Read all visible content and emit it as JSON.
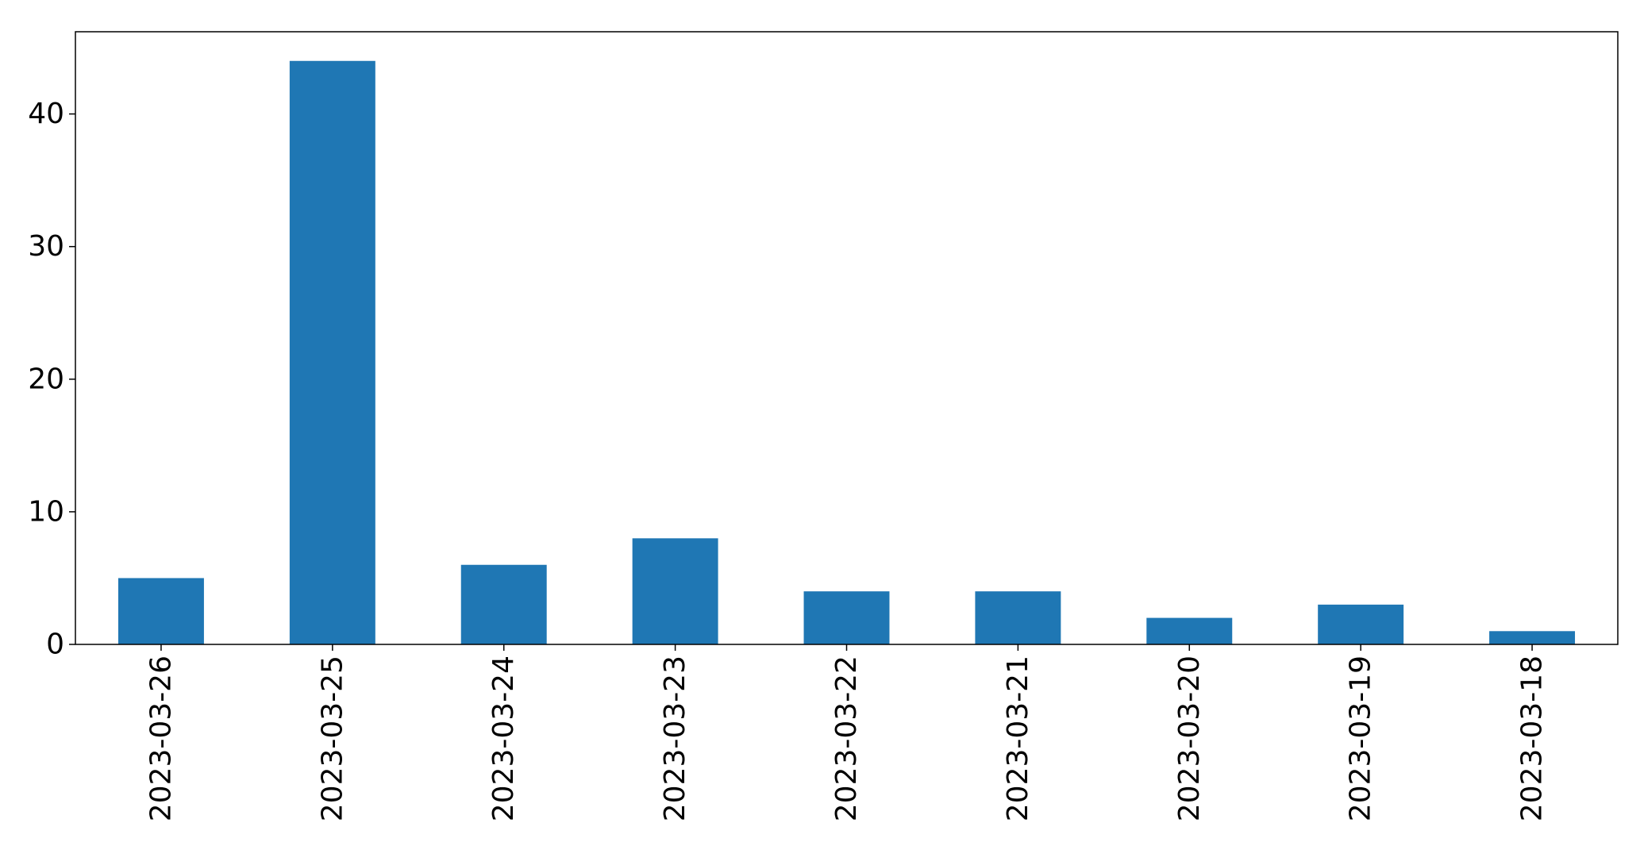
{
  "chart_data": {
    "type": "bar",
    "title": "",
    "xlabel": "",
    "ylabel": "",
    "categories": [
      "2023-03-26",
      "2023-03-25",
      "2023-03-24",
      "2023-03-23",
      "2023-03-22",
      "2023-03-21",
      "2023-03-20",
      "2023-03-19",
      "2023-03-18"
    ],
    "values": [
      5,
      44,
      6,
      8,
      4,
      4,
      2,
      3,
      1
    ],
    "ylim": [
      0,
      46.2
    ],
    "yticks": [
      0,
      10,
      20,
      30,
      40
    ],
    "bar_color": "#1f77b4",
    "grid": false,
    "legend": "none"
  }
}
